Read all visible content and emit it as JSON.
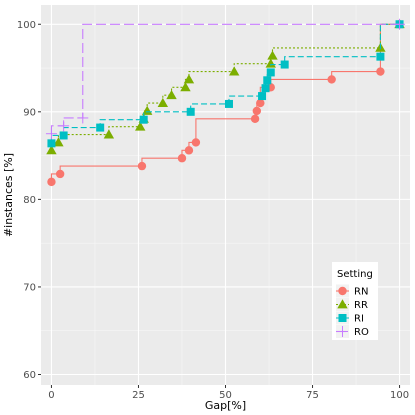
{
  "chart_data": {
    "type": "step",
    "xlabel": "Gap[%]",
    "ylabel": "#instances [%]",
    "xlim": [
      -3,
      103
    ],
    "ylim": [
      58.8,
      102.2
    ],
    "x_ticks": [
      0,
      25,
      50,
      75,
      100
    ],
    "y_ticks": [
      60,
      70,
      80,
      90,
      100
    ],
    "background": "#ebebeb",
    "grid": "on",
    "legend_title": "Setting",
    "legend_position": "bottom-right",
    "series": [
      {
        "name": "RN",
        "color": "#f8766d",
        "marker": "circle",
        "line": "solid",
        "points": [
          [
            0,
            82.0
          ],
          [
            2.5,
            82.9
          ],
          [
            26,
            83.8
          ],
          [
            37.5,
            84.7
          ],
          [
            39.5,
            85.6
          ],
          [
            41.5,
            86.5
          ],
          [
            58.5,
            89.2
          ],
          [
            59,
            90.1
          ],
          [
            60,
            91.0
          ],
          [
            63,
            92.8
          ],
          [
            80.5,
            93.7
          ],
          [
            94.5,
            94.6
          ],
          [
            100,
            100
          ]
        ]
      },
      {
        "name": "RR",
        "color": "#7cae00",
        "marker": "triangle",
        "line": "dotted",
        "points": [
          [
            0,
            85.6
          ],
          [
            2,
            86.5
          ],
          [
            16.5,
            87.4
          ],
          [
            25.5,
            88.3
          ],
          [
            26.5,
            89.2
          ],
          [
            27.5,
            90.1
          ],
          [
            32,
            91.0
          ],
          [
            34.5,
            91.9
          ],
          [
            38.5,
            92.8
          ],
          [
            39.5,
            93.7
          ],
          [
            52.5,
            94.6
          ],
          [
            63,
            95.5
          ],
          [
            63.5,
            96.4
          ],
          [
            94.5,
            97.3
          ],
          [
            100,
            100
          ]
        ]
      },
      {
        "name": "RI",
        "color": "#00bfc4",
        "marker": "square",
        "line": "dashed",
        "points": [
          [
            0,
            86.4
          ],
          [
            3.5,
            87.3
          ],
          [
            14,
            88.2
          ],
          [
            26.5,
            89.1
          ],
          [
            40,
            90.0
          ],
          [
            51,
            90.9
          ],
          [
            60.5,
            91.8
          ],
          [
            61.5,
            92.7
          ],
          [
            62,
            93.6
          ],
          [
            63,
            94.5
          ],
          [
            67,
            95.4
          ],
          [
            94.5,
            96.3
          ],
          [
            100,
            100
          ]
        ]
      },
      {
        "name": "RO",
        "color": "#c77cff",
        "marker": "plus",
        "line": "longdash",
        "points": [
          [
            0,
            87.5
          ],
          [
            3.5,
            88.4
          ],
          [
            9,
            89.3
          ],
          [
            100,
            100
          ]
        ]
      }
    ]
  }
}
